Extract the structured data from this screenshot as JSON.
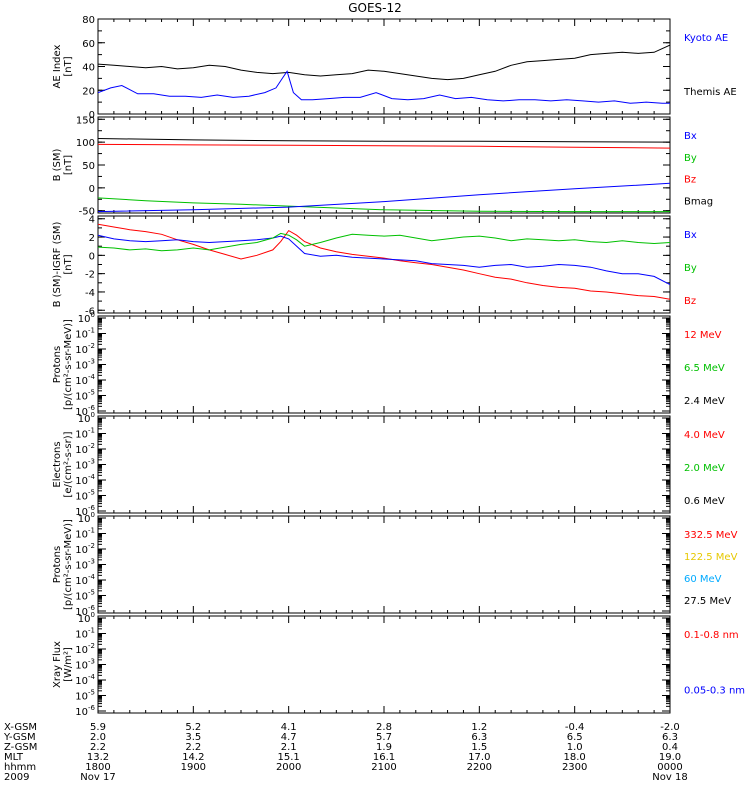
{
  "title": "GOES-12",
  "colors": {
    "black": "#000000",
    "blue": "#0000ff",
    "red": "#ff0000",
    "green": "#00c000",
    "gold": "#e6c800",
    "cyan": "#00aaff"
  },
  "time_axis": {
    "start_hhmm": 1800,
    "end_hhmm": 2400,
    "start_date": "Nov 17",
    "end_date": "Nov 18",
    "year": "2009"
  },
  "orbit_table": {
    "row_labels": [
      "X-GSM",
      "Y-GSM",
      "Z-GSM",
      "MLT",
      "hhmm",
      "2009"
    ],
    "columns": [
      {
        "t": 1800,
        "values": [
          "5.9",
          "2.0",
          "2.2",
          "13.2",
          "1800",
          "Nov 17"
        ]
      },
      {
        "t": 1900,
        "values": [
          "5.2",
          "3.5",
          "2.2",
          "14.2",
          "1900",
          ""
        ]
      },
      {
        "t": 2000,
        "values": [
          "4.1",
          "4.7",
          "2.1",
          "15.1",
          "2000",
          ""
        ]
      },
      {
        "t": 2100,
        "values": [
          "2.8",
          "5.7",
          "1.9",
          "16.1",
          "2100",
          ""
        ]
      },
      {
        "t": 2200,
        "values": [
          "1.2",
          "6.3",
          "1.5",
          "17.0",
          "2200",
          ""
        ]
      },
      {
        "t": 2300,
        "values": [
          "-0.4",
          "6.5",
          "1.0",
          "18.0",
          "2300",
          ""
        ]
      },
      {
        "t": 2400,
        "values": [
          "-2.0",
          "6.3",
          "0.4",
          "19.0",
          "0000",
          "Nov 18"
        ]
      }
    ]
  },
  "chart_data": [
    {
      "type": "line",
      "panel": "ae",
      "ylabel": [
        "AE Index",
        "[nT]"
      ],
      "ylim": [
        0,
        80
      ],
      "yticks": [
        "0",
        "20",
        "40",
        "60",
        "80"
      ],
      "legend": [
        {
          "name": "Kyoto AE",
          "color": "#0000ff"
        },
        {
          "name": "Themis AE",
          "color": "#000000"
        }
      ],
      "series": [
        {
          "name": "Themis AE",
          "color": "#000000",
          "x": [
            1800,
            1810,
            1820,
            1830,
            1840,
            1850,
            1900,
            1910,
            1920,
            1930,
            1940,
            1950,
            2000,
            2010,
            2020,
            2030,
            2040,
            2050,
            2100,
            2110,
            2120,
            2130,
            2140,
            2150,
            2200,
            2210,
            2220,
            2230,
            2240,
            2250,
            2300,
            2310,
            2320,
            2330,
            2340,
            2350,
            2400
          ],
          "y": [
            42,
            41,
            40,
            39,
            40,
            38,
            39,
            41,
            40,
            37,
            35,
            34,
            35,
            33,
            32,
            33,
            34,
            37,
            36,
            34,
            32,
            30,
            29,
            30,
            33,
            36,
            41,
            44,
            45,
            46,
            47,
            50,
            51,
            52,
            51,
            52,
            58
          ]
        },
        {
          "name": "Kyoto AE",
          "color": "#0000ff",
          "x": [
            1800,
            1808,
            1815,
            1825,
            1835,
            1845,
            1855,
            1905,
            1915,
            1925,
            1935,
            1945,
            1952,
            1956,
            1959,
            2003,
            2008,
            2015,
            2025,
            2035,
            2045,
            2055,
            2105,
            2115,
            2125,
            2135,
            2145,
            2155,
            2205,
            2215,
            2225,
            2235,
            2245,
            2255,
            2305,
            2315,
            2325,
            2335,
            2345,
            2355,
            2400
          ],
          "y": [
            18,
            22,
            24,
            17,
            17,
            15,
            15,
            14,
            16,
            14,
            15,
            18,
            22,
            30,
            36,
            18,
            12,
            12,
            13,
            14,
            14,
            18,
            13,
            12,
            13,
            16,
            13,
            14,
            12,
            11,
            12,
            12,
            11,
            12,
            11,
            10,
            11,
            9,
            10,
            9,
            9
          ]
        }
      ]
    },
    {
      "type": "line",
      "panel": "bfield",
      "ylabel": [
        "B (SM)",
        "[nT]"
      ],
      "ylim": [
        -55,
        155
      ],
      "yticks": [
        "-50",
        "0",
        "50",
        "100",
        "150"
      ],
      "legend": [
        {
          "name": "Bx",
          "color": "#0000ff"
        },
        {
          "name": "By",
          "color": "#00c000"
        },
        {
          "name": "Bz",
          "color": "#ff0000"
        },
        {
          "name": "Bmag",
          "color": "#000000"
        }
      ],
      "series": [
        {
          "name": "Bmag",
          "color": "#000000",
          "x": [
            1800,
            1900,
            2000,
            2100,
            2200,
            2300,
            2400
          ],
          "y": [
            108,
            105,
            103,
            102,
            102,
            101,
            100
          ]
        },
        {
          "name": "Bz",
          "color": "#ff0000",
          "x": [
            1800,
            1900,
            2000,
            2100,
            2200,
            2300,
            2400
          ],
          "y": [
            95,
            94,
            93,
            92,
            91,
            89,
            87
          ]
        },
        {
          "name": "By",
          "color": "#00c000",
          "x": [
            1800,
            1830,
            1900,
            1930,
            2000,
            2030,
            2100,
            2200,
            2300,
            2400
          ],
          "y": [
            -22,
            -28,
            -33,
            -36,
            -40,
            -44,
            -48,
            -51,
            -52,
            -52
          ]
        },
        {
          "name": "Bx",
          "color": "#0000ff",
          "x": [
            1800,
            1900,
            2000,
            2100,
            2200,
            2300,
            2400
          ],
          "y": [
            -52,
            -48,
            -42,
            -30,
            -15,
            -2,
            10
          ]
        }
      ]
    },
    {
      "type": "line",
      "panel": "bigrf",
      "ylabel": [
        "B (SM)-IGRF (SM)",
        "[nT]"
      ],
      "ylim": [
        -6.3,
        4.3
      ],
      "yticks": [
        "-6",
        "-4",
        "-2",
        "0",
        "2",
        "4"
      ],
      "legend": [
        {
          "name": "Bx",
          "color": "#0000ff"
        },
        {
          "name": "By",
          "color": "#00c000"
        },
        {
          "name": "Bz",
          "color": "#ff0000"
        }
      ],
      "series": [
        {
          "name": "Bz",
          "color": "#ff0000",
          "x": [
            1800,
            1810,
            1820,
            1830,
            1840,
            1850,
            1900,
            1910,
            1920,
            1930,
            1940,
            1950,
            1955,
            2000,
            2005,
            2010,
            2020,
            2030,
            2040,
            2050,
            2100,
            2110,
            2120,
            2130,
            2140,
            2150,
            2200,
            2210,
            2220,
            2230,
            2240,
            2250,
            2300,
            2310,
            2320,
            2330,
            2340,
            2350,
            2400
          ],
          "y": [
            3.4,
            3.1,
            2.8,
            2.6,
            2.3,
            1.7,
            1.2,
            0.6,
            0.1,
            -0.4,
            0,
            0.6,
            1.5,
            2.7,
            2.2,
            1.5,
            0.8,
            0.4,
            0.1,
            -0.1,
            -0.3,
            -0.6,
            -0.8,
            -1.0,
            -1.3,
            -1.6,
            -2.0,
            -2.4,
            -2.6,
            -3.0,
            -3.3,
            -3.5,
            -3.6,
            -3.9,
            -4.0,
            -4.2,
            -4.4,
            -4.5,
            -4.8
          ]
        },
        {
          "name": "Bx",
          "color": "#0000ff",
          "x": [
            1800,
            1810,
            1820,
            1830,
            1840,
            1850,
            1900,
            1910,
            1920,
            1930,
            1940,
            1950,
            1955,
            2000,
            2010,
            2020,
            2030,
            2040,
            2050,
            2100,
            2110,
            2120,
            2130,
            2140,
            2150,
            2200,
            2210,
            2220,
            2230,
            2240,
            2250,
            2300,
            2310,
            2320,
            2330,
            2340,
            2350,
            2400
          ],
          "y": [
            2.2,
            1.8,
            1.6,
            1.5,
            1.6,
            1.7,
            1.5,
            1.4,
            1.5,
            1.6,
            1.7,
            1.9,
            2.1,
            1.8,
            0.2,
            -0.1,
            0,
            -0.2,
            -0.3,
            -0.4,
            -0.5,
            -0.6,
            -0.9,
            -1.0,
            -1.1,
            -1.3,
            -1.1,
            -1.0,
            -1.3,
            -1.2,
            -1.0,
            -1.1,
            -1.3,
            -1.7,
            -2.0,
            -2.0,
            -2.3,
            -3.2
          ]
        },
        {
          "name": "By",
          "color": "#00c000",
          "x": [
            1800,
            1810,
            1820,
            1830,
            1840,
            1850,
            1900,
            1910,
            1920,
            1930,
            1940,
            1950,
            1955,
            2000,
            2005,
            2010,
            2020,
            2030,
            2040,
            2050,
            2100,
            2110,
            2120,
            2130,
            2140,
            2150,
            2200,
            2210,
            2220,
            2230,
            2240,
            2250,
            2300,
            2310,
            2320,
            2330,
            2340,
            2350,
            2400
          ],
          "y": [
            0.9,
            0.8,
            0.6,
            0.7,
            0.5,
            0.6,
            0.8,
            0.6,
            0.9,
            1.2,
            1.4,
            1.9,
            2.4,
            2.2,
            1.7,
            1.0,
            1.4,
            1.9,
            2.3,
            2.2,
            2.1,
            2.2,
            1.9,
            1.6,
            1.8,
            2.0,
            2.1,
            1.9,
            1.6,
            1.8,
            1.7,
            1.6,
            1.7,
            1.5,
            1.4,
            1.6,
            1.4,
            1.3,
            1.4
          ]
        }
      ]
    },
    {
      "type": "line",
      "panel": "protons",
      "log_scale": true,
      "ylabel": [
        "Protons",
        "[p/(cm²-s-sr-MeV)]"
      ],
      "ylim": [
        "1e-6",
        "1e0"
      ],
      "legend": [
        {
          "name": "12 MeV",
          "color": "#ff0000"
        },
        {
          "name": "6.5 MeV",
          "color": "#00c000"
        },
        {
          "name": "2.4 MeV",
          "color": "#000000"
        }
      ],
      "series": []
    },
    {
      "type": "line",
      "panel": "electrons",
      "log_scale": true,
      "ylabel": [
        "Electrons",
        "[e/(cm²-s-sr)]"
      ],
      "ylim": [
        "1e-6",
        "1e0"
      ],
      "legend": [
        {
          "name": "4.0 MeV",
          "color": "#ff0000"
        },
        {
          "name": "2.0 MeV",
          "color": "#00c000"
        },
        {
          "name": "0.6 MeV",
          "color": "#000000"
        }
      ],
      "series": []
    },
    {
      "type": "line",
      "panel": "hiprotons",
      "log_scale": true,
      "ylabel": [
        "Protons",
        "[p/(cm²-s-sr-MeV)]"
      ],
      "ylim": [
        "1e-6",
        "1e0"
      ],
      "legend": [
        {
          "name": "332.5 MeV",
          "color": "#ff0000"
        },
        {
          "name": "122.5 MeV",
          "color": "#e6c800"
        },
        {
          "name": "60 MeV",
          "color": "#00aaff"
        },
        {
          "name": "27.5 MeV",
          "color": "#000000"
        }
      ],
      "series": []
    },
    {
      "type": "line",
      "panel": "xray",
      "log_scale": true,
      "ylabel": [
        "Xray Flux",
        "[W/m²]"
      ],
      "ylim": [
        "1e-6",
        "1e0"
      ],
      "legend": [
        {
          "name": "0.1-0.8 nm",
          "color": "#ff0000"
        },
        {
          "name": "0.05-0.3 nm",
          "color": "#0000ff"
        }
      ],
      "series": []
    }
  ]
}
